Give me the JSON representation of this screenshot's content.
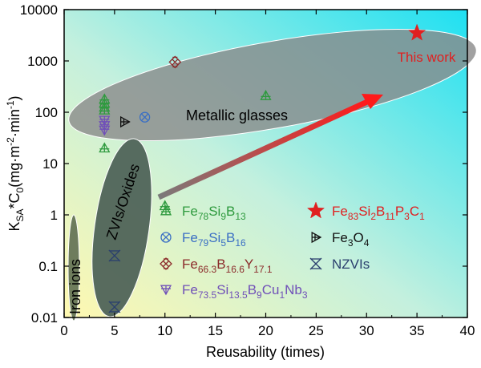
{
  "chart_data": {
    "type": "scatter",
    "xlabel": "Reusability (times)",
    "ylabel": {
      "main": "K",
      "sub1": "SA",
      "mid": "*C",
      "sub2": "0",
      "paren_open": "(mg·m",
      "sup1": "-2",
      "dot": "·min",
      "sup2": "-1",
      "paren_close": ")"
    },
    "xlim": [
      0,
      40
    ],
    "ylim": [
      0.01,
      10000
    ],
    "y_scale": "log",
    "x_ticks": [
      "0",
      "5",
      "10",
      "15",
      "20",
      "25",
      "30",
      "35",
      "40"
    ],
    "y_ticks": [
      "0.01",
      "0.1",
      "1",
      "10",
      "100",
      "1000",
      "10000"
    ],
    "regions": [
      {
        "name": "Metallic glasses",
        "color": "#8a8a8a"
      },
      {
        "name": "ZVIs/Oxides",
        "color": "#4f6358"
      },
      {
        "name": "Iron ions",
        "color": "#5f6f52"
      }
    ],
    "annotation": {
      "text": "This work",
      "color": "#e02020"
    },
    "series": [
      {
        "key": "fesib",
        "legend": [
          [
            "Fe",
            ""
          ],
          [
            "78",
            "sub"
          ],
          [
            "Si",
            ""
          ],
          [
            "9",
            "sub"
          ],
          [
            "B",
            ""
          ],
          [
            "13",
            "sub"
          ]
        ],
        "color": "#2e9a3e",
        "marker": "triangle-up-cross",
        "points": [
          [
            4,
            180
          ],
          [
            4,
            150
          ],
          [
            4,
            125
          ],
          [
            4,
            110
          ],
          [
            4,
            20
          ],
          [
            20,
            210
          ],
          [
            10,
            1.5
          ]
        ]
      },
      {
        "key": "fesib2",
        "legend": [
          [
            "Fe",
            ""
          ],
          [
            "79",
            "sub"
          ],
          [
            "Si",
            ""
          ],
          [
            "5",
            "sub"
          ],
          [
            "B",
            ""
          ],
          [
            "16",
            "sub"
          ]
        ],
        "color": "#3b6fc4",
        "marker": "circle-x",
        "points": [
          [
            8,
            80
          ]
        ]
      },
      {
        "key": "feby",
        "legend": [
          [
            "Fe",
            ""
          ],
          [
            "66.3",
            "sub"
          ],
          [
            "B",
            ""
          ],
          [
            "16.6",
            "sub"
          ],
          [
            "Y",
            ""
          ],
          [
            "17.1",
            "sub"
          ]
        ],
        "color": "#8b2a2a",
        "marker": "square-x",
        "points": [
          [
            11,
            950
          ]
        ]
      },
      {
        "key": "finemet",
        "legend": [
          [
            "Fe",
            ""
          ],
          [
            "73.5",
            "sub"
          ],
          [
            "Si",
            ""
          ],
          [
            "13.5",
            "sub"
          ],
          [
            "B",
            ""
          ],
          [
            "9",
            "sub"
          ],
          [
            "Cu",
            ""
          ],
          [
            "1",
            "sub"
          ],
          [
            "Nb",
            ""
          ],
          [
            "3",
            "sub"
          ]
        ],
        "color": "#7050b8",
        "marker": "triangle-down-cross",
        "points": [
          [
            4,
            70
          ],
          [
            4,
            55
          ],
          [
            4,
            45
          ]
        ]
      },
      {
        "key": "thiswork",
        "legend": [
          [
            "Fe",
            ""
          ],
          [
            "83",
            "sub"
          ],
          [
            "Si",
            ""
          ],
          [
            "2",
            "sub"
          ],
          [
            "B",
            ""
          ],
          [
            "11",
            "sub"
          ],
          [
            "P",
            ""
          ],
          [
            "3",
            "sub"
          ],
          [
            "C",
            ""
          ],
          [
            "1",
            "sub"
          ]
        ],
        "color": "#e02020",
        "marker": "star",
        "points": [
          [
            35,
            3500
          ]
        ]
      },
      {
        "key": "fe3o4",
        "legend": [
          [
            "Fe",
            ""
          ],
          [
            "3",
            "sub"
          ],
          [
            "O",
            ""
          ],
          [
            "4",
            "sub"
          ]
        ],
        "color": "#111111",
        "marker": "triangle-right-cross",
        "points": [
          [
            6,
            65
          ]
        ]
      },
      {
        "key": "nzvi",
        "legend": [
          [
            "NZVIs",
            ""
          ]
        ],
        "color": "#2a3f6e",
        "marker": "x-box",
        "points": [
          [
            5,
            0.16
          ],
          [
            5,
            0.016
          ]
        ]
      }
    ]
  }
}
